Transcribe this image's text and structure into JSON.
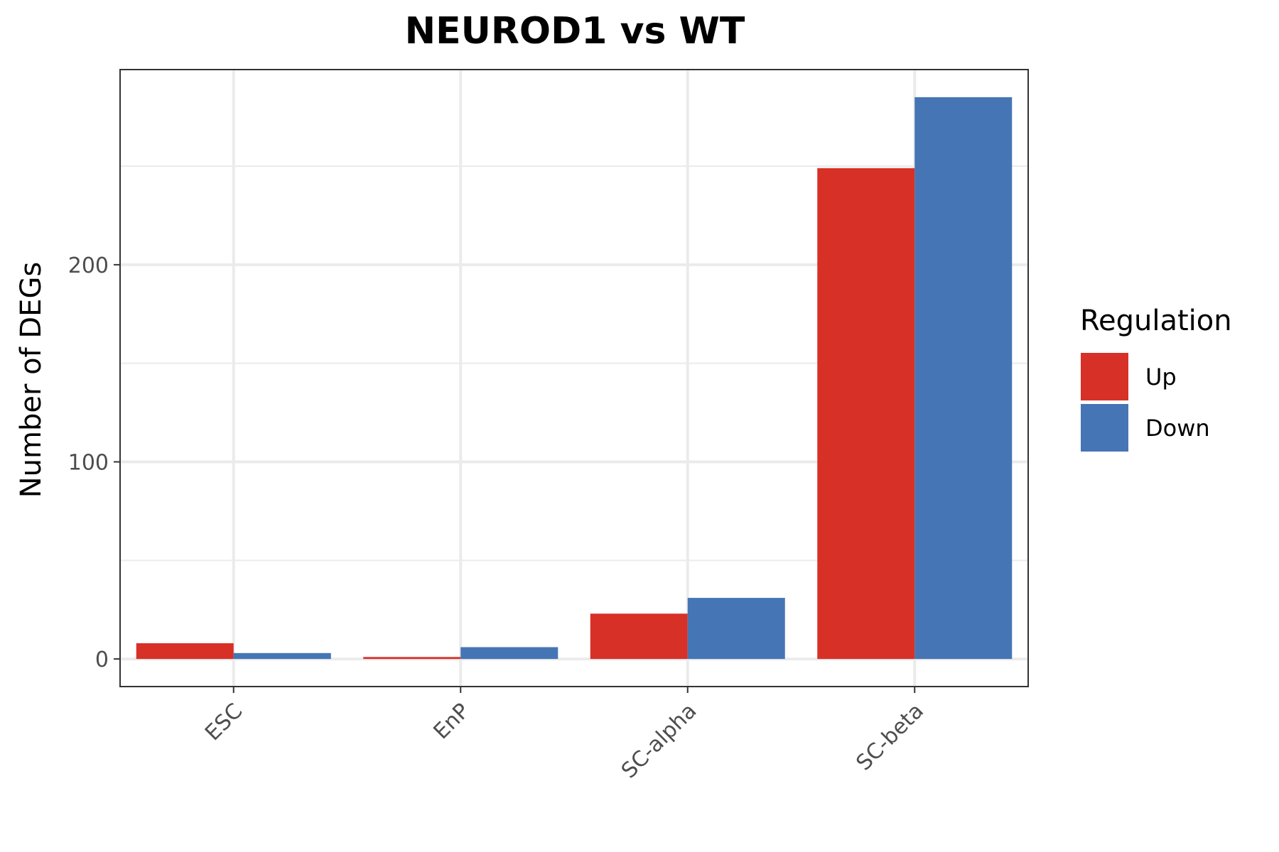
{
  "chart_data": {
    "type": "bar",
    "title": "NEUROD1 vs WT",
    "xlabel": "",
    "ylabel": "Number of DEGs",
    "categories": [
      "ESC",
      "EnP",
      "SC-alpha",
      "SC-beta"
    ],
    "series": [
      {
        "name": "Up",
        "color": "#d73027",
        "values": [
          8,
          1,
          23,
          249
        ]
      },
      {
        "name": "Down",
        "color": "#4575b4",
        "values": [
          3,
          6,
          31,
          285
        ]
      }
    ],
    "ylim": [
      -14,
      299
    ],
    "yticks": [
      0,
      100,
      200
    ],
    "y_minor_gridlines": [
      50,
      150,
      250
    ],
    "grid": true,
    "legend": {
      "title": "Regulation",
      "position": "right"
    }
  }
}
